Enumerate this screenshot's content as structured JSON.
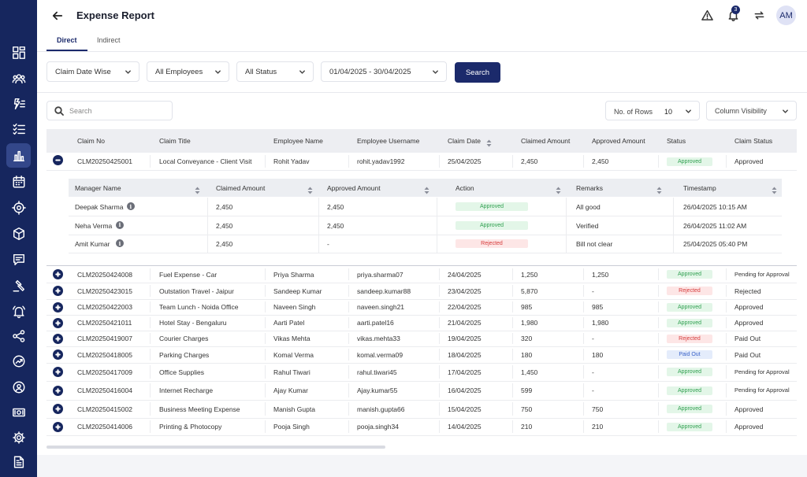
{
  "header": {
    "title": "Expense Report",
    "notification_count": "3",
    "avatar_initials": "AM",
    "tabs": [
      {
        "label": "Direct"
      },
      {
        "label": "Indirect"
      }
    ]
  },
  "filters": {
    "claim_date": "Claim Date Wise",
    "employees": "All Employees",
    "status": "All Status",
    "date_range": "01/04/2025 - 30/04/2025",
    "search_button": "Search"
  },
  "toolbar": {
    "search_placeholder": "Search",
    "rows_label": "No. of Rows",
    "rows_value": "10",
    "column_visibility": "Column Visibility"
  },
  "table": {
    "columns": [
      "Claim No",
      "Claim Title",
      "Employee Name",
      "Employee Username",
      "Claim Date",
      "Claimed Amount",
      "Approved Amount",
      "Status",
      "Claim Status"
    ],
    "expanded_row": {
      "claim_no": "CLM20250425001",
      "title": "Local Conveyance - Client Visit",
      "employee": "Rohit Yadav",
      "username": "rohit.yadav1992",
      "date": "25/04/2025",
      "claimed": "2,450",
      "approved": "2,450",
      "status": "Approved",
      "claim_status": "Approved"
    },
    "sub_columns": [
      "Manager Name",
      "Claimed Amount",
      "Approved Amount",
      "Action",
      "Remarks",
      "Timestamp"
    ],
    "sub_rows": [
      {
        "manager": "Deepak Sharma",
        "claimed": "2,450",
        "approved": "2,450",
        "action": "Approved",
        "remarks": "All good",
        "timestamp": "26/04/2025 10:15 AM"
      },
      {
        "manager": "Neha Verma",
        "claimed": "2,450",
        "approved": "2,450",
        "action": "Approved",
        "remarks": "Verified",
        "timestamp": "26/04/2025 11:02 AM"
      },
      {
        "manager": "Amit Kumar",
        "claimed": "2,450",
        "approved": "-",
        "action": "Rejected",
        "remarks": "Bill not clear",
        "timestamp": "25/04/2025 05:40 PM"
      }
    ],
    "rows": [
      {
        "claim_no": "CLM20250424008",
        "title": "Fuel Expense - Car",
        "employee": "Priya Sharma",
        "username": "priya.sharma07",
        "date": "24/04/2025",
        "claimed": "1,250",
        "approved": "1,250",
        "status": "Approved",
        "claim_status": "Pending for Approval"
      },
      {
        "claim_no": "CLM20250423015",
        "title": "Outstation Travel - Jaipur",
        "employee": "Sandeep Kumar",
        "username": "sandeep.kumar88",
        "date": "23/04/2025",
        "claimed": "5,870",
        "approved": "-",
        "status": "Rejected",
        "claim_status": "Rejected"
      },
      {
        "claim_no": "CLM20250422003",
        "title": "Team Lunch - Noida Office",
        "employee": "Naveen Singh",
        "username": "naveen.singh21",
        "date": "22/04/2025",
        "claimed": "985",
        "approved": "985",
        "status": "Approved",
        "claim_status": "Approved"
      },
      {
        "claim_no": "CLM20250421011",
        "title": "Hotel Stay - Bengaluru",
        "employee": "Aarti Patel",
        "username": "aarti.patel16",
        "date": "21/04/2025",
        "claimed": "1,980",
        "approved": "1,980",
        "status": "Approved",
        "claim_status": "Approved"
      },
      {
        "claim_no": "CLM20250419007",
        "title": "Courier Charges",
        "employee": "Vikas Mehta",
        "username": "vikas.mehta33",
        "date": "19/04/2025",
        "claimed": "320",
        "approved": "-",
        "status": "Rejected",
        "claim_status": "Paid Out"
      },
      {
        "claim_no": "CLM20250418005",
        "title": "Parking Charges",
        "employee": "Komal Verma",
        "username": "komal.verma09",
        "date": "18/04/2025",
        "claimed": "180",
        "approved": "180",
        "status": "Paid Out",
        "claim_status": "Paid Out"
      },
      {
        "claim_no": "CLM20250417009",
        "title": "Office Supplies",
        "employee": "Rahul Tiwari",
        "username": "rahul.tiwari45",
        "date": "17/04/2025",
        "claimed": "1,450",
        "approved": "-",
        "status": "Approved",
        "claim_status": "Pending for Approval"
      },
      {
        "claim_no": "CLM20250416004",
        "title": "Internet Recharge",
        "employee": "Ajay Kumar",
        "username": "Ajay.kumar55",
        "date": "16/04/2025",
        "claimed": "599",
        "approved": "-",
        "status": "Approved",
        "claim_status": "Pending for Approval"
      },
      {
        "claim_no": "CLM20250415002",
        "title": "Business Meeting Expense",
        "employee": "Manish Gupta",
        "username": "manish.gupta66",
        "date": "15/04/2025",
        "claimed": "750",
        "approved": "750",
        "status": "Approved",
        "claim_status": "Approved"
      },
      {
        "claim_no": "CLM20250414006",
        "title": "Printing & Photocopy",
        "employee": "Pooja Singh",
        "username": "pooja.singh34",
        "date": "14/04/2025",
        "claimed": "210",
        "approved": "210",
        "status": "Approved",
        "claim_status": "Approved"
      }
    ]
  },
  "colors": {
    "primary": "#1b2a6b",
    "sidebar": "#16265e",
    "approved": "#2f9f4f",
    "rejected": "#d63b3b",
    "paid_out": "#3b63c9"
  },
  "sidebar_icons": [
    "dashboard-icon",
    "users-icon",
    "hierarchy-icon",
    "checklist-icon",
    "bar-chart-icon",
    "calendar-icon",
    "target-icon",
    "package-icon",
    "message-icon",
    "gavel-icon",
    "bell-alert-icon",
    "share-nodes-icon",
    "trend-circle-icon",
    "user-settings-icon",
    "money-icon",
    "gear-icon",
    "report-icon"
  ]
}
